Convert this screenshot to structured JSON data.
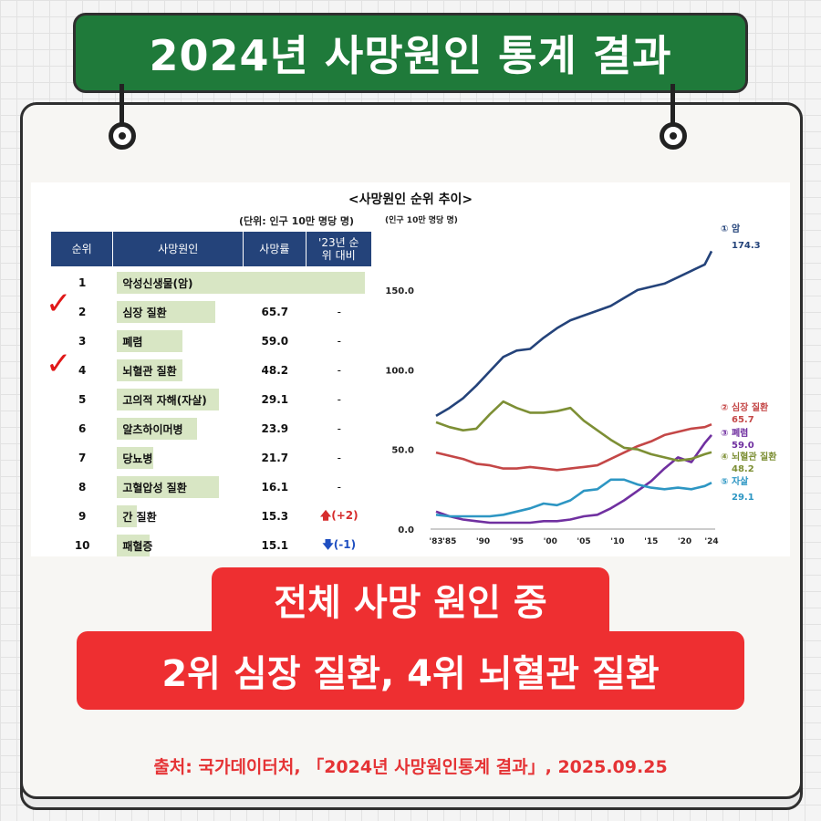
{
  "header": {
    "title": "2024년 사망원인 통계 결과"
  },
  "panel": {
    "title": "<사망원인 순위 추이>",
    "table_unit": "(단위: 인구 10만 명당 명)",
    "columns": [
      "순위",
      "사망원인",
      "사망률",
      "'23년 순위 대비"
    ],
    "rows": [
      {
        "rank": "1",
        "cause": "악성신생물(암)",
        "rate": "174.3",
        "change": "-",
        "dir": "none"
      },
      {
        "rank": "2",
        "cause": "심장 질환",
        "rate": "65.7",
        "change": "-",
        "dir": "none"
      },
      {
        "rank": "3",
        "cause": "폐렴",
        "rate": "59.0",
        "change": "-",
        "dir": "none"
      },
      {
        "rank": "4",
        "cause": "뇌혈관 질환",
        "rate": "48.2",
        "change": "-",
        "dir": "none"
      },
      {
        "rank": "5",
        "cause": "고의적 자해(자살)",
        "rate": "29.1",
        "change": "-",
        "dir": "none"
      },
      {
        "rank": "6",
        "cause": "알츠하이머병",
        "rate": "23.9",
        "change": "-",
        "dir": "none"
      },
      {
        "rank": "7",
        "cause": "당뇨병",
        "rate": "21.7",
        "change": "-",
        "dir": "none"
      },
      {
        "rank": "8",
        "cause": "고혈압성 질환",
        "rate": "16.1",
        "change": "-",
        "dir": "none"
      },
      {
        "rank": "9",
        "cause": "간 질환",
        "rate": "15.3",
        "change": "(+2)",
        "dir": "up"
      },
      {
        "rank": "10",
        "cause": "패혈증",
        "rate": "15.1",
        "change": "(-1)",
        "dir": "down"
      }
    ]
  },
  "highlight": {
    "line1": "전체 사망 원인 중",
    "line2": "2위 심장 질환, 4위 뇌혈관 질환"
  },
  "source": "출처: 국가데이터처, 「2024년 사망원인통계 결과」, 2025.09.25",
  "chart_data": {
    "type": "line",
    "ylabel": "(인구 10만 명당 명)",
    "ylim": [
      0,
      190
    ],
    "yticks": [
      "0.0",
      "50.0",
      "100.0",
      "150.0"
    ],
    "xticks": [
      "'83",
      "'85",
      "'90",
      "'95",
      "'00",
      "'05",
      "'10",
      "'15",
      "'20",
      "'24"
    ],
    "x": [
      1983,
      1985,
      1987,
      1989,
      1991,
      1993,
      1995,
      1997,
      1999,
      2001,
      2003,
      2005,
      2007,
      2009,
      2011,
      2013,
      2015,
      2017,
      2019,
      2021,
      2023,
      2024
    ],
    "series": [
      {
        "name": "① 암",
        "value_label": "174.3",
        "color": "#24437a",
        "values": [
          71,
          76,
          82,
          90,
          99,
          108,
          112,
          113,
          120,
          126,
          131,
          134,
          137,
          140,
          145,
          150,
          152,
          154,
          158,
          162,
          166,
          174.3
        ]
      },
      {
        "name": "② 심장 질환",
        "value_label": "65.7",
        "color": "#c44747",
        "values": [
          48,
          46,
          44,
          41,
          40,
          38,
          38,
          39,
          38,
          37,
          38,
          39,
          40,
          44,
          48,
          52,
          55,
          59,
          61,
          63,
          64,
          65.7
        ]
      },
      {
        "name": "③ 폐렴",
        "value_label": "59.0",
        "color": "#7030a0",
        "values": [
          11,
          8,
          6,
          5,
          4,
          4,
          4,
          4,
          5,
          5,
          6,
          8,
          9,
          13,
          18,
          24,
          30,
          38,
          45,
          42,
          54,
          59.0
        ]
      },
      {
        "name": "④ 뇌혈관 질환",
        "value_label": "48.2",
        "color": "#7d8f35",
        "values": [
          67,
          64,
          62,
          63,
          72,
          80,
          76,
          73,
          73,
          74,
          76,
          68,
          62,
          56,
          51,
          50,
          47,
          45,
          43,
          44,
          47,
          48.2
        ]
      },
      {
        "name": "⑤ 자살",
        "value_label": "29.1",
        "color": "#2d96c3",
        "values": [
          9,
          8,
          8,
          8,
          8,
          9,
          11,
          13,
          16,
          15,
          18,
          24,
          25,
          31,
          31,
          28,
          26,
          25,
          26,
          25,
          27,
          29.1
        ]
      }
    ]
  }
}
